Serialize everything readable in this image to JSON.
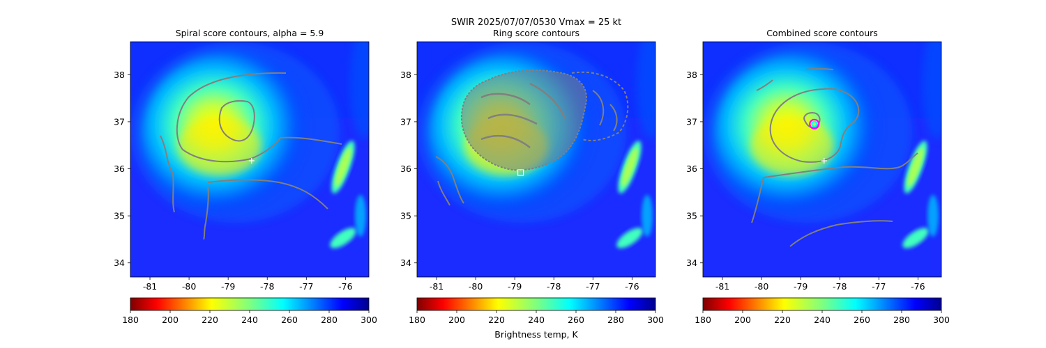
{
  "suptitle": "SWIR  2025/07/07/0530    Vmax = 25 kt",
  "colorbar_label": "Brightness temp, K",
  "chart_data": [
    {
      "type": "heatmap",
      "title": "Spiral score contours, alpha =  5.9",
      "xlim": [
        -81.5,
        -75.4
      ],
      "ylim": [
        33.7,
        38.7
      ],
      "xticks": [
        "-81",
        "-80",
        "-79",
        "-78",
        "-77",
        "-76"
      ],
      "yticks": [
        "34",
        "35",
        "36",
        "37",
        "38"
      ],
      "colorbar": {
        "range": [
          180,
          300
        ],
        "ticks": [
          "180",
          "200",
          "220",
          "240",
          "260",
          "280",
          "300"
        ],
        "colormap": "jet_r"
      },
      "markers": [
        {
          "kind": "plus",
          "color": "#ffffff",
          "x": -78.4,
          "y": 36.17
        }
      ],
      "contour_color": "#808080"
    },
    {
      "type": "heatmap",
      "title": "Ring score contours",
      "xlim": [
        -81.5,
        -75.4
      ],
      "ylim": [
        33.7,
        38.7
      ],
      "xticks": [
        "-81",
        "-80",
        "-79",
        "-78",
        "-77",
        "-76"
      ],
      "yticks": [
        "34",
        "35",
        "36",
        "37",
        "38"
      ],
      "colorbar": {
        "range": [
          180,
          300
        ],
        "ticks": [
          "180",
          "200",
          "220",
          "240",
          "260",
          "280",
          "300"
        ],
        "colormap": "jet_r"
      },
      "markers": [
        {
          "kind": "square",
          "color": "#ffffff",
          "x": -78.85,
          "y": 35.92
        }
      ],
      "contour_color": "#808080"
    },
    {
      "type": "heatmap",
      "title": "Combined score contours",
      "xlim": [
        -81.5,
        -75.4
      ],
      "ylim": [
        33.7,
        38.7
      ],
      "xticks": [
        "-81",
        "-80",
        "-79",
        "-78",
        "-77",
        "-76"
      ],
      "yticks": [
        "34",
        "35",
        "36",
        "37",
        "38"
      ],
      "colorbar": {
        "range": [
          180,
          300
        ],
        "ticks": [
          "180",
          "200",
          "220",
          "240",
          "260",
          "280",
          "300"
        ],
        "colormap": "jet_r"
      },
      "markers": [
        {
          "kind": "plus",
          "color": "#ffffff",
          "x": -78.4,
          "y": 36.17
        },
        {
          "kind": "circle",
          "color": "#ff00ff",
          "x": -78.65,
          "y": 36.95
        },
        {
          "kind": "circle",
          "color": "#00ffff",
          "x": -78.65,
          "y": 36.95
        }
      ],
      "contour_color": "#808080"
    }
  ]
}
